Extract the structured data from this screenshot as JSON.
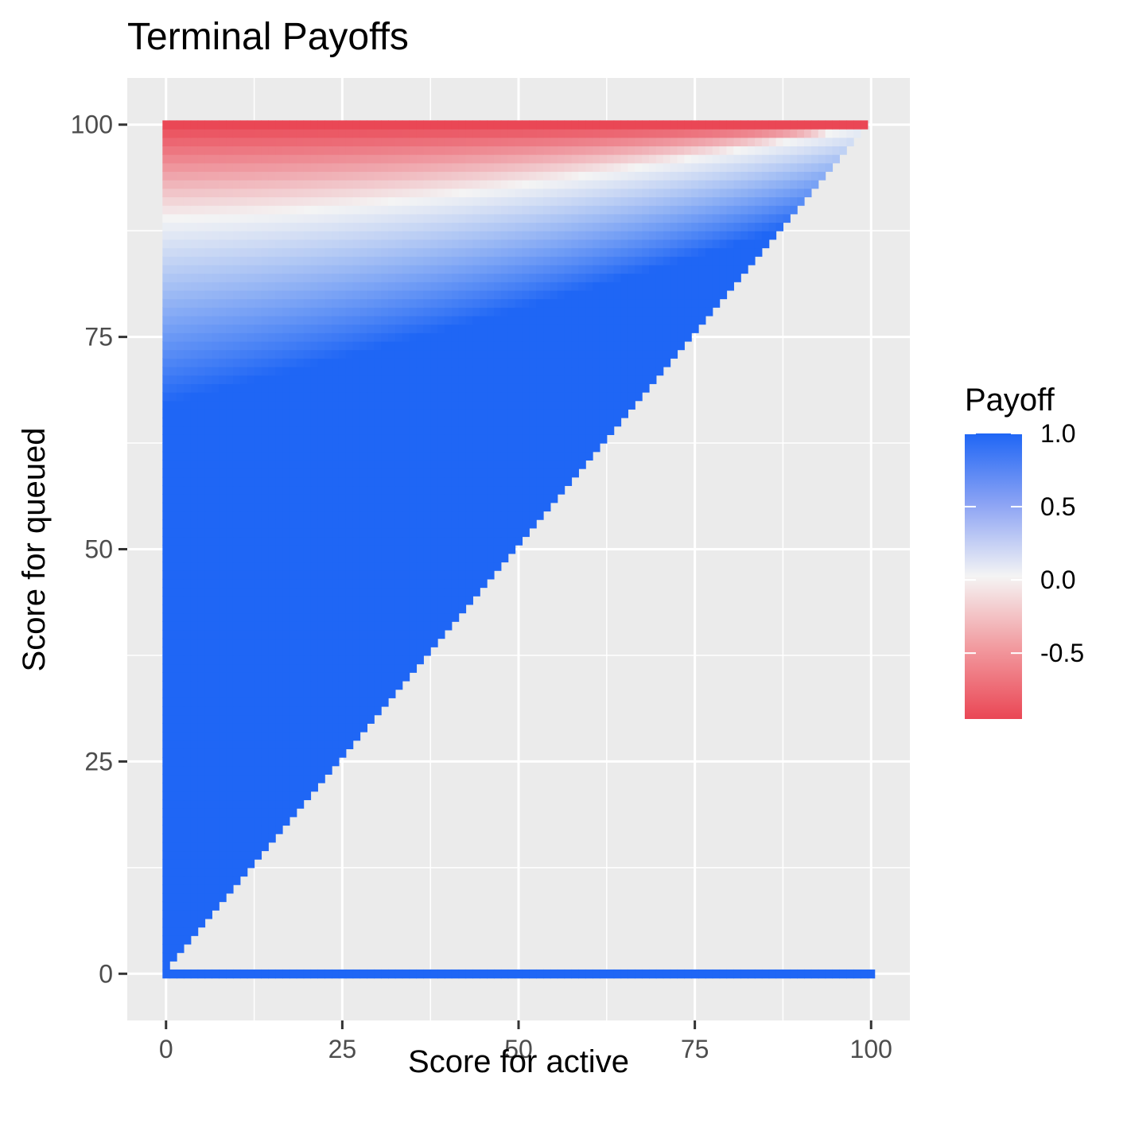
{
  "chart_data": {
    "type": "heatmap",
    "title": "Terminal Payoffs",
    "xlabel": "Score for active",
    "ylabel": "Score for queued",
    "x_ticks": [
      0,
      25,
      50,
      75,
      100
    ],
    "y_ticks": [
      0,
      25,
      50,
      75,
      100
    ],
    "x_tick_labels": [
      "0",
      "25",
      "50",
      "75",
      "100"
    ],
    "y_tick_labels": [
      "0",
      "25",
      "50",
      "75",
      "100"
    ],
    "xlim": [
      -5.5,
      105.5
    ],
    "ylim": [
      -5.5,
      105.5
    ],
    "grid": true,
    "legend": {
      "title": "Payoff",
      "position": "right",
      "breaks": [
        1.0,
        0.5,
        0.0,
        -0.5
      ],
      "labels": [
        "1.0",
        "0.5",
        "0.0",
        "-0.5"
      ],
      "range": [
        -0.95,
        1.0
      ]
    },
    "colors": {
      "high": "#1f66f5",
      "mid": "#f4f4f4",
      "low": "#ea4755",
      "panel": "#ebebeb",
      "grid": "#ffffff"
    },
    "description_of_values": {
      "cells": "payoff per integer grid cell (active 0-100, queued 0-100); cells with active < queued are drawn",
      "blue_region": "payoff = 1.0 for queued well below active",
      "white_band": "payoff near 0 along the upper band (queued ~ 89 at active 0, rising toward 100 at active 100)",
      "red_top": "payoff approaches -0.95 at queued = 100"
    }
  }
}
